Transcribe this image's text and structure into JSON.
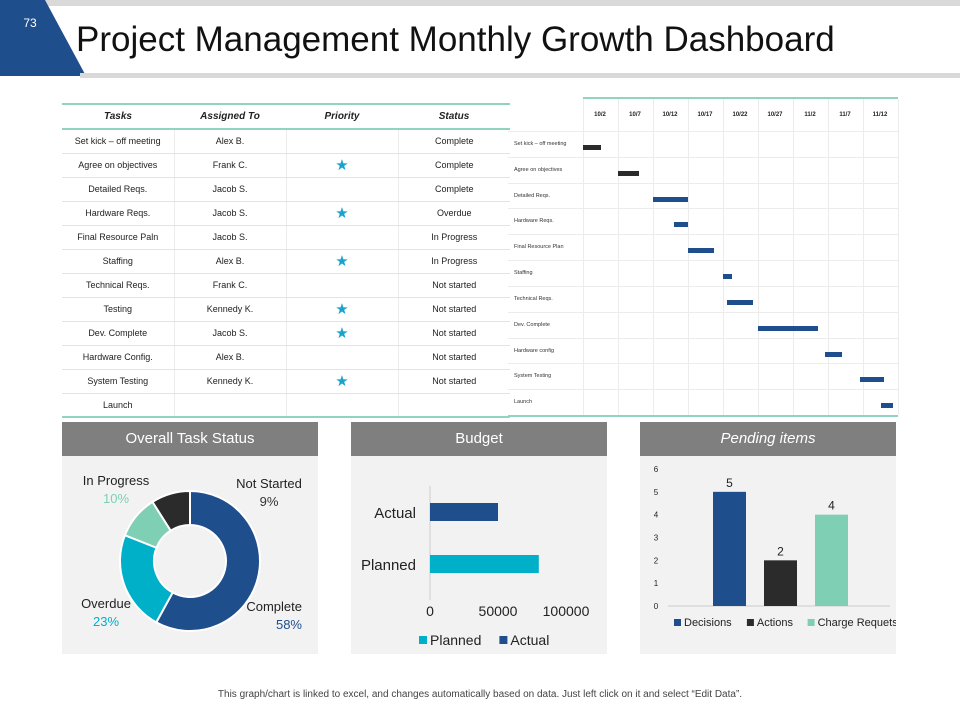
{
  "slide": {
    "number": "73",
    "title": "Project Management Monthly Growth Dashboard"
  },
  "colors": {
    "navy": "#1f4e8c",
    "teal": "#00b0c8",
    "charcoal": "#2b2b2b",
    "mint": "#7fcfb5",
    "light_teal": "#8fd3c0",
    "star": "#1aa3c9",
    "panel_head": "#7f7f7f"
  },
  "table": {
    "headers": [
      "Tasks",
      "Assigned To",
      "Priority",
      "Status"
    ],
    "rows": [
      {
        "task": "Set kick – off meeting",
        "assigned": "Alex B.",
        "priority": false,
        "status": "Complete"
      },
      {
        "task": "Agree on objectives",
        "assigned": "Frank C.",
        "priority": true,
        "status": "Complete"
      },
      {
        "task": "Detailed Reqs.",
        "assigned": "Jacob S.",
        "priority": false,
        "status": "Complete"
      },
      {
        "task": "Hardware Reqs.",
        "assigned": "Jacob S.",
        "priority": true,
        "status": "Overdue"
      },
      {
        "task": "Final Resource Paln",
        "assigned": "Jacob S.",
        "priority": false,
        "status": "In Progress"
      },
      {
        "task": "Staffing",
        "assigned": "Alex B.",
        "priority": true,
        "status": "In Progress"
      },
      {
        "task": "Technical Reqs.",
        "assigned": "Frank C.",
        "priority": false,
        "status": "Not started"
      },
      {
        "task": "Testing",
        "assigned": "Kennedy K.",
        "priority": true,
        "status": "Not started"
      },
      {
        "task": "Dev. Complete",
        "assigned": "Jacob S.",
        "priority": true,
        "status": "Not started"
      },
      {
        "task": "Hardware Config.",
        "assigned": "Alex B.",
        "priority": false,
        "status": "Not started"
      },
      {
        "task": "System Testing",
        "assigned": "Kennedy K.",
        "priority": true,
        "status": "Not started"
      },
      {
        "task": "Launch",
        "assigned": "",
        "priority": false,
        "status": ""
      }
    ]
  },
  "chart_data": [
    {
      "type": "gantt",
      "dates": [
        "10/2",
        "10/7",
        "10/12",
        "10/17",
        "10/22",
        "10/27",
        "11/2",
        "11/7",
        "11/12"
      ],
      "tasks": [
        {
          "label": "Set kick – off meeting",
          "start": 0.0,
          "end": 0.5,
          "color": "#2b2b2b"
        },
        {
          "label": "Agree on objectives",
          "start": 1.0,
          "end": 1.6,
          "color": "#2b2b2b"
        },
        {
          "label": "Detailed Reqs.",
          "start": 2.0,
          "end": 3.0,
          "color": "#1f4e8c"
        },
        {
          "label": "Hardware Reqs.",
          "start": 2.6,
          "end": 3.0,
          "color": "#1f4e8c"
        },
        {
          "label": "Final Resource Plan",
          "start": 3.0,
          "end": 3.75,
          "color": "#1f4e8c"
        },
        {
          "label": "Staffing",
          "start": 4.0,
          "end": 4.25,
          "color": "#1f4e8c"
        },
        {
          "label": "Technical Reqs.",
          "start": 4.1,
          "end": 4.85,
          "color": "#1f4e8c"
        },
        {
          "label": "Dev. Complete",
          "start": 5.0,
          "end": 6.7,
          "color": "#1f4e8c"
        },
        {
          "label": "Hardware config",
          "start": 6.9,
          "end": 7.4,
          "color": "#1f4e8c"
        },
        {
          "label": "System Testing",
          "start": 7.9,
          "end": 8.6,
          "color": "#1f4e8c"
        },
        {
          "label": "Launch",
          "start": 8.5,
          "end": 8.85,
          "color": "#1f4e8c"
        }
      ]
    },
    {
      "type": "pie",
      "title": "Overall Task Status",
      "donut": true,
      "slices": [
        {
          "name": "Complete",
          "value": 58,
          "label": "58%",
          "color": "#1f4e8c"
        },
        {
          "name": "Overdue",
          "value": 23,
          "label": "23%",
          "color": "#00b0c8"
        },
        {
          "name": "In Progress",
          "value": 10,
          "label": "10%",
          "color": "#7fcfb5"
        },
        {
          "name": "Not Started",
          "value": 9,
          "label": "9%",
          "color": "#2b2b2b"
        }
      ]
    },
    {
      "type": "bar",
      "orientation": "horizontal",
      "title": "Budget",
      "categories": [
        "Actual",
        "Planned"
      ],
      "series": [
        {
          "name": "Planned",
          "color": "#00b0c8",
          "values": [
            null,
            80000
          ]
        },
        {
          "name": "Actual",
          "color": "#1f4e8c",
          "values": [
            50000,
            null
          ]
        }
      ],
      "xlim": [
        0,
        100000
      ],
      "xticks": [
        "0",
        "50000",
        "100000"
      ],
      "legend": "bottom"
    },
    {
      "type": "bar",
      "title": "Pending items",
      "categories": [
        "Decisions",
        "Actions",
        "Charge Requets"
      ],
      "values": [
        5,
        2,
        4
      ],
      "colors": [
        "#1f4e8c",
        "#2b2b2b",
        "#7fcfb5"
      ],
      "ylim": [
        0,
        6
      ],
      "yticks": [
        "0",
        "1",
        "2",
        "3",
        "4",
        "5",
        "6"
      ],
      "legend": "bottom"
    }
  ],
  "footer": "This graph/chart is linked to excel, and changes automatically based on data. Just left click on it and select “Edit Data”."
}
